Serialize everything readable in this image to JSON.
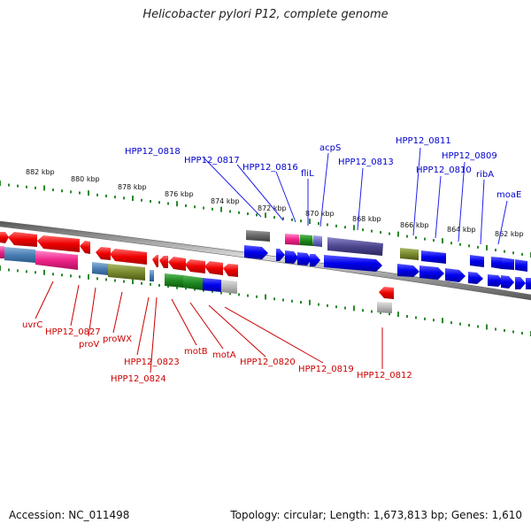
{
  "title": "Helicobacter pylori P12, complete genome",
  "footer": {
    "accession": "Accession: NC_011498",
    "summary": "Topology: circular; Length: 1,673,813 bp; Genes: 1,610"
  },
  "colors": {
    "forward_label": "#0000cc",
    "reverse_label": "#cc0000",
    "tick": "#2a8a2a",
    "backbone": "#888888"
  },
  "kbp_ticks": [
    "882 kbp",
    "880 kbp",
    "878 kbp",
    "876 kbp",
    "874 kbp",
    "872 kbp",
    "870 kbp",
    "868 kbp",
    "866 kbp",
    "864 kbp",
    "862 kbp"
  ],
  "forward_labels": [
    "HPP12_0818",
    "HPP12_0817",
    "HPP12_0816",
    "fliL",
    "acpS",
    "HPP12_0813",
    "HPP12_0811",
    "HPP12_0810",
    "HPP12_0809",
    "ribA",
    "moaE"
  ],
  "reverse_labels": [
    "uvrC",
    "HPP12_0827",
    "proV",
    "proWX",
    "HPP12_0823",
    "HPP12_0824",
    "motB",
    "motA",
    "HPP12_0820",
    "HPP12_0819",
    "HPP12_0812"
  ]
}
